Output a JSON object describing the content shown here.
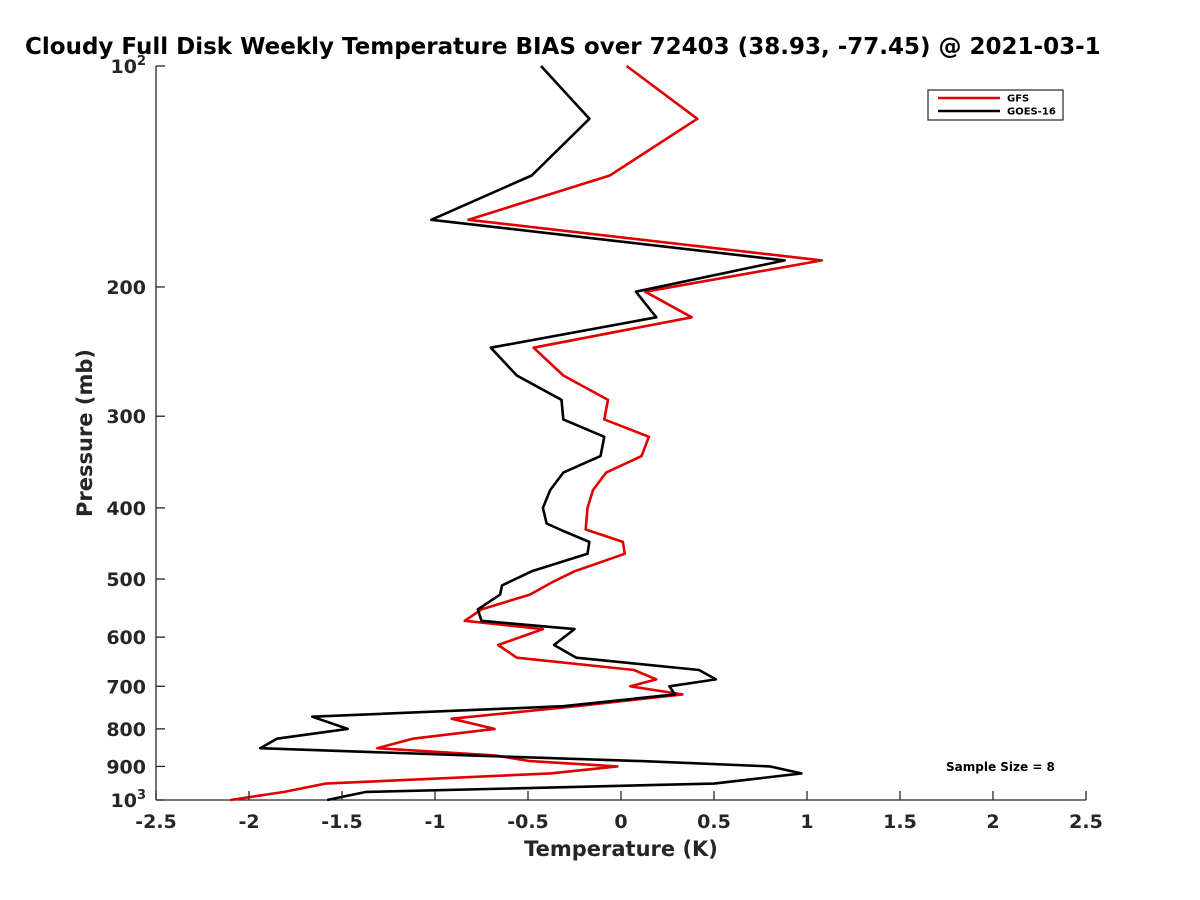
{
  "chart_data": {
    "type": "line",
    "title": "Cloudy Full Disk Weekly Temperature BIAS over 72403 (38.93, -77.45) @ 2021-03-1",
    "xlabel": "Temperature (K)",
    "ylabel": "Pressure (mb)",
    "xlim": [
      -2.5,
      2.5
    ],
    "ylim": [
      1000,
      100
    ],
    "y_scale": "log",
    "y_reversed": true,
    "x_ticks": [
      "-2.5",
      "-2",
      "-1.5",
      "-1",
      "-0.5",
      "0",
      "0.5",
      "1",
      "1.5",
      "2",
      "2.5"
    ],
    "y_ticks": [
      {
        "value": 100,
        "base": "10",
        "exp": "2"
      },
      {
        "value": 200,
        "label": "200"
      },
      {
        "value": 300,
        "label": "300"
      },
      {
        "value": 400,
        "label": "400"
      },
      {
        "value": 500,
        "label": "500"
      },
      {
        "value": 600,
        "label": "600"
      },
      {
        "value": 700,
        "label": "700"
      },
      {
        "value": 800,
        "label": "800"
      },
      {
        "value": 900,
        "label": "900"
      },
      {
        "value": 1000,
        "base": "10",
        "exp": "3"
      }
    ],
    "legend_position": "top-right",
    "annotation": "Sample Size = 8",
    "grid": false,
    "series": [
      {
        "name": "GFS",
        "color": "#e00000",
        "points": [
          [
            0.03,
            100
          ],
          [
            0.41,
            118
          ],
          [
            -0.06,
            141
          ],
          [
            -0.82,
            162
          ],
          [
            1.08,
            184
          ],
          [
            0.13,
            203
          ],
          [
            0.38,
            220
          ],
          [
            -0.47,
            242
          ],
          [
            -0.31,
            264
          ],
          [
            -0.07,
            285
          ],
          [
            -0.09,
            303
          ],
          [
            0.15,
            320
          ],
          [
            0.11,
            340
          ],
          [
            -0.08,
            358
          ],
          [
            -0.15,
            378
          ],
          [
            -0.18,
            400
          ],
          [
            -0.19,
            428
          ],
          [
            0.01,
            445
          ],
          [
            0.02,
            462
          ],
          [
            -0.25,
            488
          ],
          [
            -0.37,
            505
          ],
          [
            -0.49,
            525
          ],
          [
            -0.75,
            550
          ],
          [
            -0.84,
            570
          ],
          [
            -0.42,
            585
          ],
          [
            -0.66,
            615
          ],
          [
            -0.56,
            640
          ],
          [
            0.07,
            665
          ],
          [
            0.19,
            685
          ],
          [
            0.05,
            700
          ],
          [
            0.33,
            718
          ],
          [
            -0.24,
            745
          ],
          [
            -0.91,
            775
          ],
          [
            -0.68,
            800
          ],
          [
            -1.12,
            825
          ],
          [
            -1.31,
            850
          ],
          [
            -0.67,
            870
          ],
          [
            -0.49,
            885
          ],
          [
            -0.02,
            900
          ],
          [
            -0.38,
            920
          ],
          [
            -1.59,
            950
          ],
          [
            -1.81,
            975
          ],
          [
            -2.1,
            1000
          ]
        ]
      },
      {
        "name": "GOES-16",
        "color": "#000000",
        "points": [
          [
            -0.43,
            100
          ],
          [
            -0.17,
            118
          ],
          [
            -0.48,
            141
          ],
          [
            -1.02,
            162
          ],
          [
            0.88,
            184
          ],
          [
            0.08,
            203
          ],
          [
            0.19,
            220
          ],
          [
            -0.7,
            242
          ],
          [
            -0.56,
            264
          ],
          [
            -0.32,
            285
          ],
          [
            -0.31,
            303
          ],
          [
            -0.09,
            320
          ],
          [
            -0.11,
            340
          ],
          [
            -0.31,
            358
          ],
          [
            -0.38,
            378
          ],
          [
            -0.42,
            400
          ],
          [
            -0.4,
            420
          ],
          [
            -0.31,
            430
          ],
          [
            -0.17,
            445
          ],
          [
            -0.18,
            462
          ],
          [
            -0.48,
            488
          ],
          [
            -0.64,
            510
          ],
          [
            -0.65,
            525
          ],
          [
            -0.77,
            550
          ],
          [
            -0.75,
            570
          ],
          [
            -0.25,
            585
          ],
          [
            -0.36,
            615
          ],
          [
            -0.24,
            640
          ],
          [
            0.42,
            665
          ],
          [
            0.51,
            685
          ],
          [
            0.26,
            700
          ],
          [
            0.29,
            718
          ],
          [
            -0.31,
            745
          ],
          [
            -1.66,
            770
          ],
          [
            -1.47,
            800
          ],
          [
            -1.85,
            825
          ],
          [
            -1.94,
            850
          ],
          [
            -0.79,
            870
          ],
          [
            0.11,
            885
          ],
          [
            0.8,
            900
          ],
          [
            0.97,
            920
          ],
          [
            0.5,
            950
          ],
          [
            -1.37,
            975
          ],
          [
            -1.58,
            1000
          ]
        ]
      }
    ]
  }
}
